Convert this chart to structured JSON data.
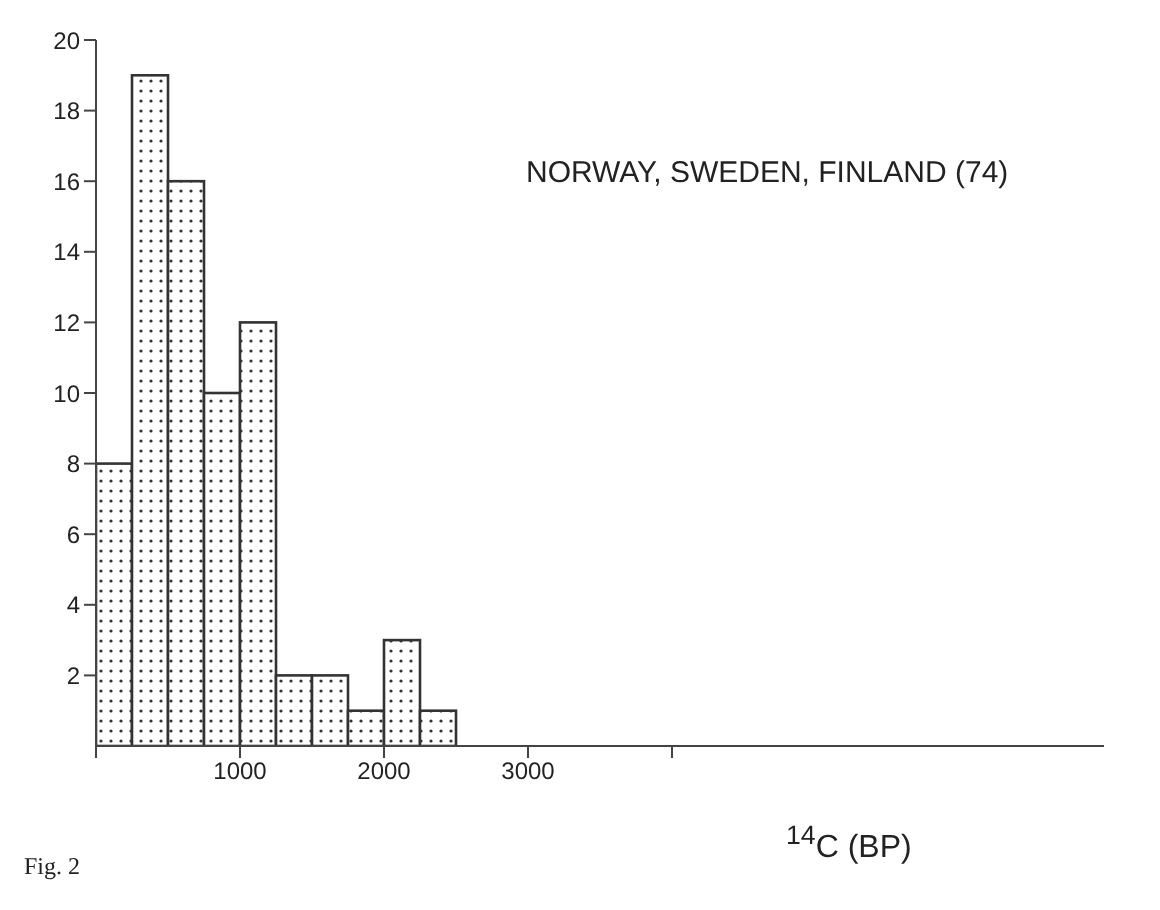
{
  "chart_data": {
    "type": "histogram",
    "xlabel": "$^{14}$C (BP)",
    "annotations": [
      "NORWAY, SWEDEN, FINLAND (74)",
      "Fig. 2"
    ],
    "bins": [
      0,
      250,
      500,
      750,
      1000,
      1250,
      1500,
      1750,
      2000,
      2250,
      2500
    ],
    "values": [
      8,
      19,
      16,
      10,
      12,
      2,
      2,
      1,
      3,
      1
    ],
    "color": "#333333",
    "xlim": [
      0,
      7000
    ],
    "xticks": [
      {
        "value": 0,
        "label": null
      },
      1000,
      2000,
      3000,
      {
        "value": 4000,
        "label": null
      }
    ],
    "ylim": [
      0,
      20
    ],
    "yticks": [
      2,
      4,
      6,
      8,
      10,
      12,
      14,
      16,
      18,
      20
    ],
    "grid": false,
    "legend": false
  }
}
